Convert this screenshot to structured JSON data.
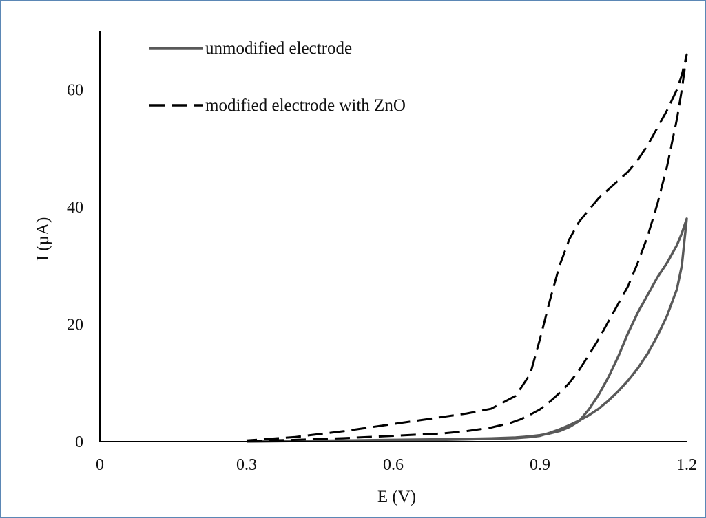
{
  "chart_data": {
    "type": "line",
    "title": "",
    "xlabel": "E (V)",
    "ylabel": "I (µA)",
    "xlim": [
      0,
      1.2
    ],
    "ylim": [
      0,
      70
    ],
    "xticks": [
      0,
      0.3,
      0.6,
      0.9,
      1.2
    ],
    "xtick_labels": [
      "0",
      "0.3",
      "0.6",
      "0.9",
      "1.2"
    ],
    "yticks": [
      0,
      20,
      40,
      60
    ],
    "ytick_labels": [
      "0",
      "20",
      "40",
      "60"
    ],
    "grid": false,
    "legend_position": "top-left",
    "series": [
      {
        "name": "unmodified electrode",
        "style": "solid",
        "color": "#595959",
        "x": [
          0.3,
          0.4,
          0.5,
          0.6,
          0.7,
          0.75,
          0.8,
          0.85,
          0.88,
          0.9,
          0.92,
          0.94,
          0.96,
          0.98,
          1.0,
          1.02,
          1.04,
          1.06,
          1.08,
          1.1,
          1.12,
          1.14,
          1.16,
          1.18,
          1.19,
          1.2,
          1.19,
          1.18,
          1.16,
          1.14,
          1.12,
          1.1,
          1.08,
          1.06,
          1.04,
          1.02,
          1.0,
          0.98,
          0.96,
          0.94,
          0.92,
          0.9,
          0.88,
          0.85,
          0.8,
          0.7,
          0.6,
          0.5,
          0.4,
          0.3
        ],
        "y": [
          0.0,
          0.1,
          0.15,
          0.2,
          0.3,
          0.4,
          0.5,
          0.6,
          0.8,
          1.0,
          1.5,
          2.1,
          2.8,
          3.6,
          4.5,
          5.6,
          7.0,
          8.6,
          10.4,
          12.5,
          15.0,
          18.0,
          21.5,
          26.0,
          30.0,
          38.0,
          35.5,
          33.5,
          30.5,
          28.0,
          25.0,
          22.0,
          18.5,
          14.5,
          11.0,
          8.0,
          5.5,
          3.5,
          2.5,
          1.8,
          1.4,
          1.1,
          0.9,
          0.7,
          0.55,
          0.4,
          0.3,
          0.2,
          0.1,
          0.0
        ]
      },
      {
        "name": "modified electrode with ZnO",
        "style": "dashed",
        "color": "#000000",
        "x": [
          0.3,
          0.4,
          0.5,
          0.6,
          0.7,
          0.75,
          0.8,
          0.84,
          0.86,
          0.88,
          0.9,
          0.92,
          0.94,
          0.96,
          0.98,
          1.0,
          1.02,
          1.04,
          1.06,
          1.08,
          1.1,
          1.12,
          1.14,
          1.16,
          1.18,
          1.19,
          1.2,
          1.19,
          1.18,
          1.16,
          1.14,
          1.12,
          1.1,
          1.08,
          1.06,
          1.04,
          1.02,
          1.0,
          0.98,
          0.96,
          0.94,
          0.92,
          0.9,
          0.88,
          0.85,
          0.8,
          0.75,
          0.7,
          0.6,
          0.5,
          0.4,
          0.3
        ],
        "y": [
          0.1,
          0.3,
          0.6,
          1.0,
          1.4,
          1.8,
          2.4,
          3.2,
          3.8,
          4.6,
          5.5,
          6.8,
          8.3,
          10.0,
          12.2,
          14.8,
          17.5,
          20.5,
          23.5,
          26.5,
          30.5,
          35.0,
          40.5,
          47.0,
          55.0,
          60.0,
          66.0,
          62.5,
          60.0,
          56.5,
          53.5,
          50.5,
          48.0,
          46.0,
          44.5,
          43.0,
          41.5,
          39.5,
          37.5,
          34.5,
          30.0,
          24.0,
          17.5,
          11.5,
          7.8,
          5.6,
          4.8,
          4.2,
          3.0,
          1.8,
          0.8,
          0.2
        ]
      }
    ]
  }
}
